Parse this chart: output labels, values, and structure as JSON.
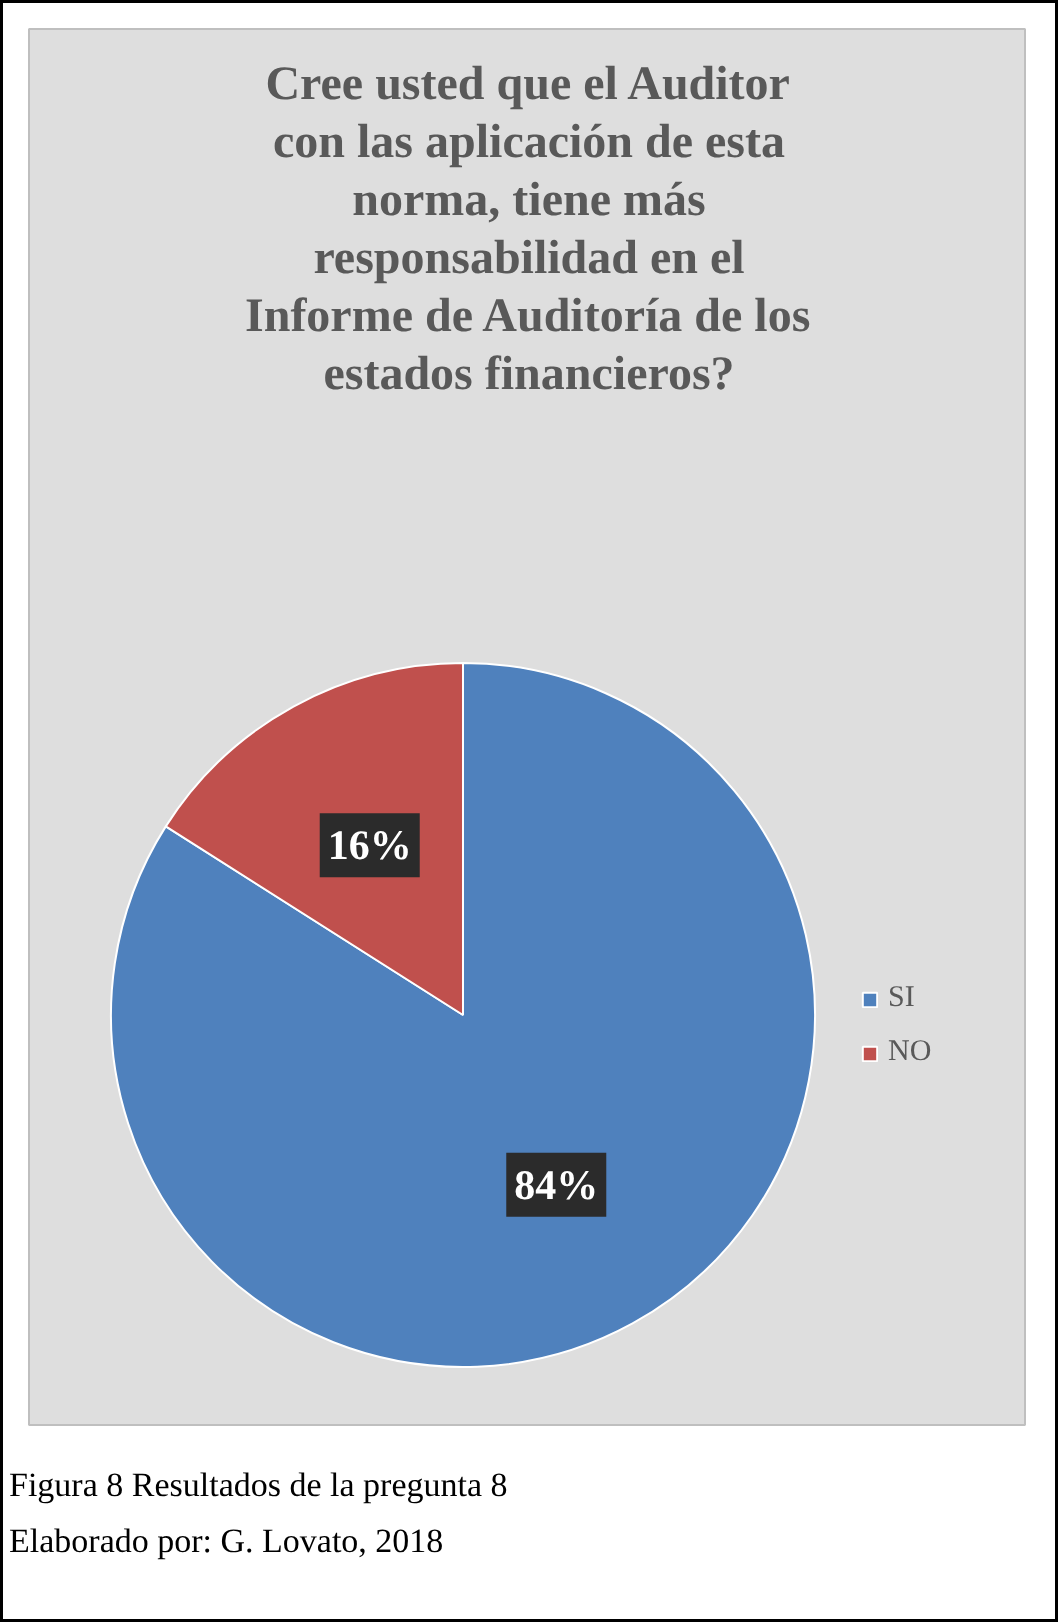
{
  "chart_data": {
    "type": "pie",
    "title": "Cree usted que el Auditor con las aplicación de esta norma, tiene más responsabilidad en el Informe de Auditoría de los estados financieros?",
    "categories": [
      "SI",
      "NO"
    ],
    "values": [
      84,
      16
    ],
    "colors": [
      "#4f81bd",
      "#c0504d"
    ],
    "value_labels": [
      "84%",
      "16%"
    ],
    "legend": "right",
    "annotations": [
      "Figura 8 Resultados de la pregunta 8",
      "Elaborado por: G. Lovato,  2018"
    ]
  }
}
